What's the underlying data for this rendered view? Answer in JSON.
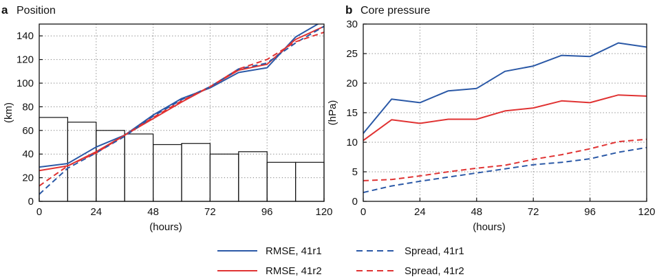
{
  "legend": [
    {
      "label": "RMSE, 41r1",
      "color": "#2a58a6",
      "dash": "solid"
    },
    {
      "label": "RMSE, 41r2",
      "color": "#e03232",
      "dash": "dashed-no"
    },
    {
      "label": "Spread, 41r1",
      "color": "#2a58a6",
      "dash": "dashed"
    },
    {
      "label": "Spread, 41r2",
      "color": "#e03232",
      "dash": "dashed"
    }
  ],
  "chart_data": [
    {
      "type": "line",
      "panel_letter": "a",
      "title": "Position",
      "xlabel": "(hours)",
      "ylabel": "(km)",
      "xlim": [
        0,
        120
      ],
      "ylim": [
        0,
        150
      ],
      "xticks": [
        0,
        24,
        48,
        72,
        96,
        120
      ],
      "yticks": [
        0,
        20,
        40,
        60,
        80,
        100,
        120,
        140
      ],
      "grid": "dotted",
      "x": [
        0,
        12,
        24,
        36,
        48,
        60,
        72,
        84,
        96,
        108,
        120
      ],
      "series": [
        {
          "name": "RMSE, 41r1",
          "color": "#2a58a6",
          "style": "solid",
          "values": [
            29,
            32,
            46,
            56,
            73,
            87,
            96,
            109,
            113,
            139,
            153
          ]
        },
        {
          "name": "RMSE, 41r2",
          "color": "#e03232",
          "style": "solid",
          "values": [
            26,
            30,
            42,
            56,
            70,
            84,
            97,
            111,
            116,
            137,
            148
          ]
        },
        {
          "name": "Spread, 41r1",
          "color": "#2a58a6",
          "style": "dashed",
          "values": [
            6,
            28,
            41,
            55,
            72,
            86,
            97,
            112,
            117,
            134,
            148
          ]
        },
        {
          "name": "Spread, 41r2",
          "color": "#e03232",
          "style": "dashed",
          "values": [
            13,
            30,
            41,
            56,
            71,
            85,
            97,
            112,
            120,
            135,
            143
          ]
        }
      ],
      "histogram": {
        "bin_edges": [
          0,
          12,
          24,
          36,
          48,
          60,
          72,
          84,
          96,
          108,
          120
        ],
        "values": [
          71,
          67,
          60,
          57,
          48,
          49,
          40,
          42,
          33,
          33
        ]
      }
    },
    {
      "type": "line",
      "panel_letter": "b",
      "title": "Core pressure",
      "xlabel": "(hours)",
      "ylabel": "(hPa)",
      "xlim": [
        0,
        120
      ],
      "ylim": [
        0,
        30
      ],
      "xticks": [
        0,
        24,
        48,
        72,
        96,
        120
      ],
      "yticks": [
        0,
        5,
        10,
        15,
        20,
        25,
        30
      ],
      "grid": "dotted",
      "x": [
        0,
        12,
        24,
        36,
        48,
        60,
        72,
        84,
        96,
        108,
        120
      ],
      "series": [
        {
          "name": "RMSE, 41r1",
          "color": "#2a58a6",
          "style": "solid",
          "values": [
            11.5,
            17.3,
            16.7,
            18.7,
            19.1,
            22.0,
            22.9,
            24.7,
            24.5,
            26.8,
            26.1
          ]
        },
        {
          "name": "RMSE, 41r2",
          "color": "#e03232",
          "style": "solid",
          "values": [
            10.3,
            13.8,
            13.2,
            13.9,
            13.9,
            15.3,
            15.8,
            17.0,
            16.7,
            18.0,
            17.8
          ]
        },
        {
          "name": "Spread, 41r1",
          "color": "#2a58a6",
          "style": "dashed",
          "values": [
            1.5,
            2.6,
            3.4,
            4.1,
            4.8,
            5.5,
            6.2,
            6.6,
            7.2,
            8.3,
            9.1
          ]
        },
        {
          "name": "Spread, 41r2",
          "color": "#e03232",
          "style": "dashed",
          "values": [
            3.5,
            3.7,
            4.3,
            5.0,
            5.6,
            6.1,
            7.1,
            7.9,
            8.9,
            10.1,
            10.5
          ]
        }
      ]
    }
  ]
}
